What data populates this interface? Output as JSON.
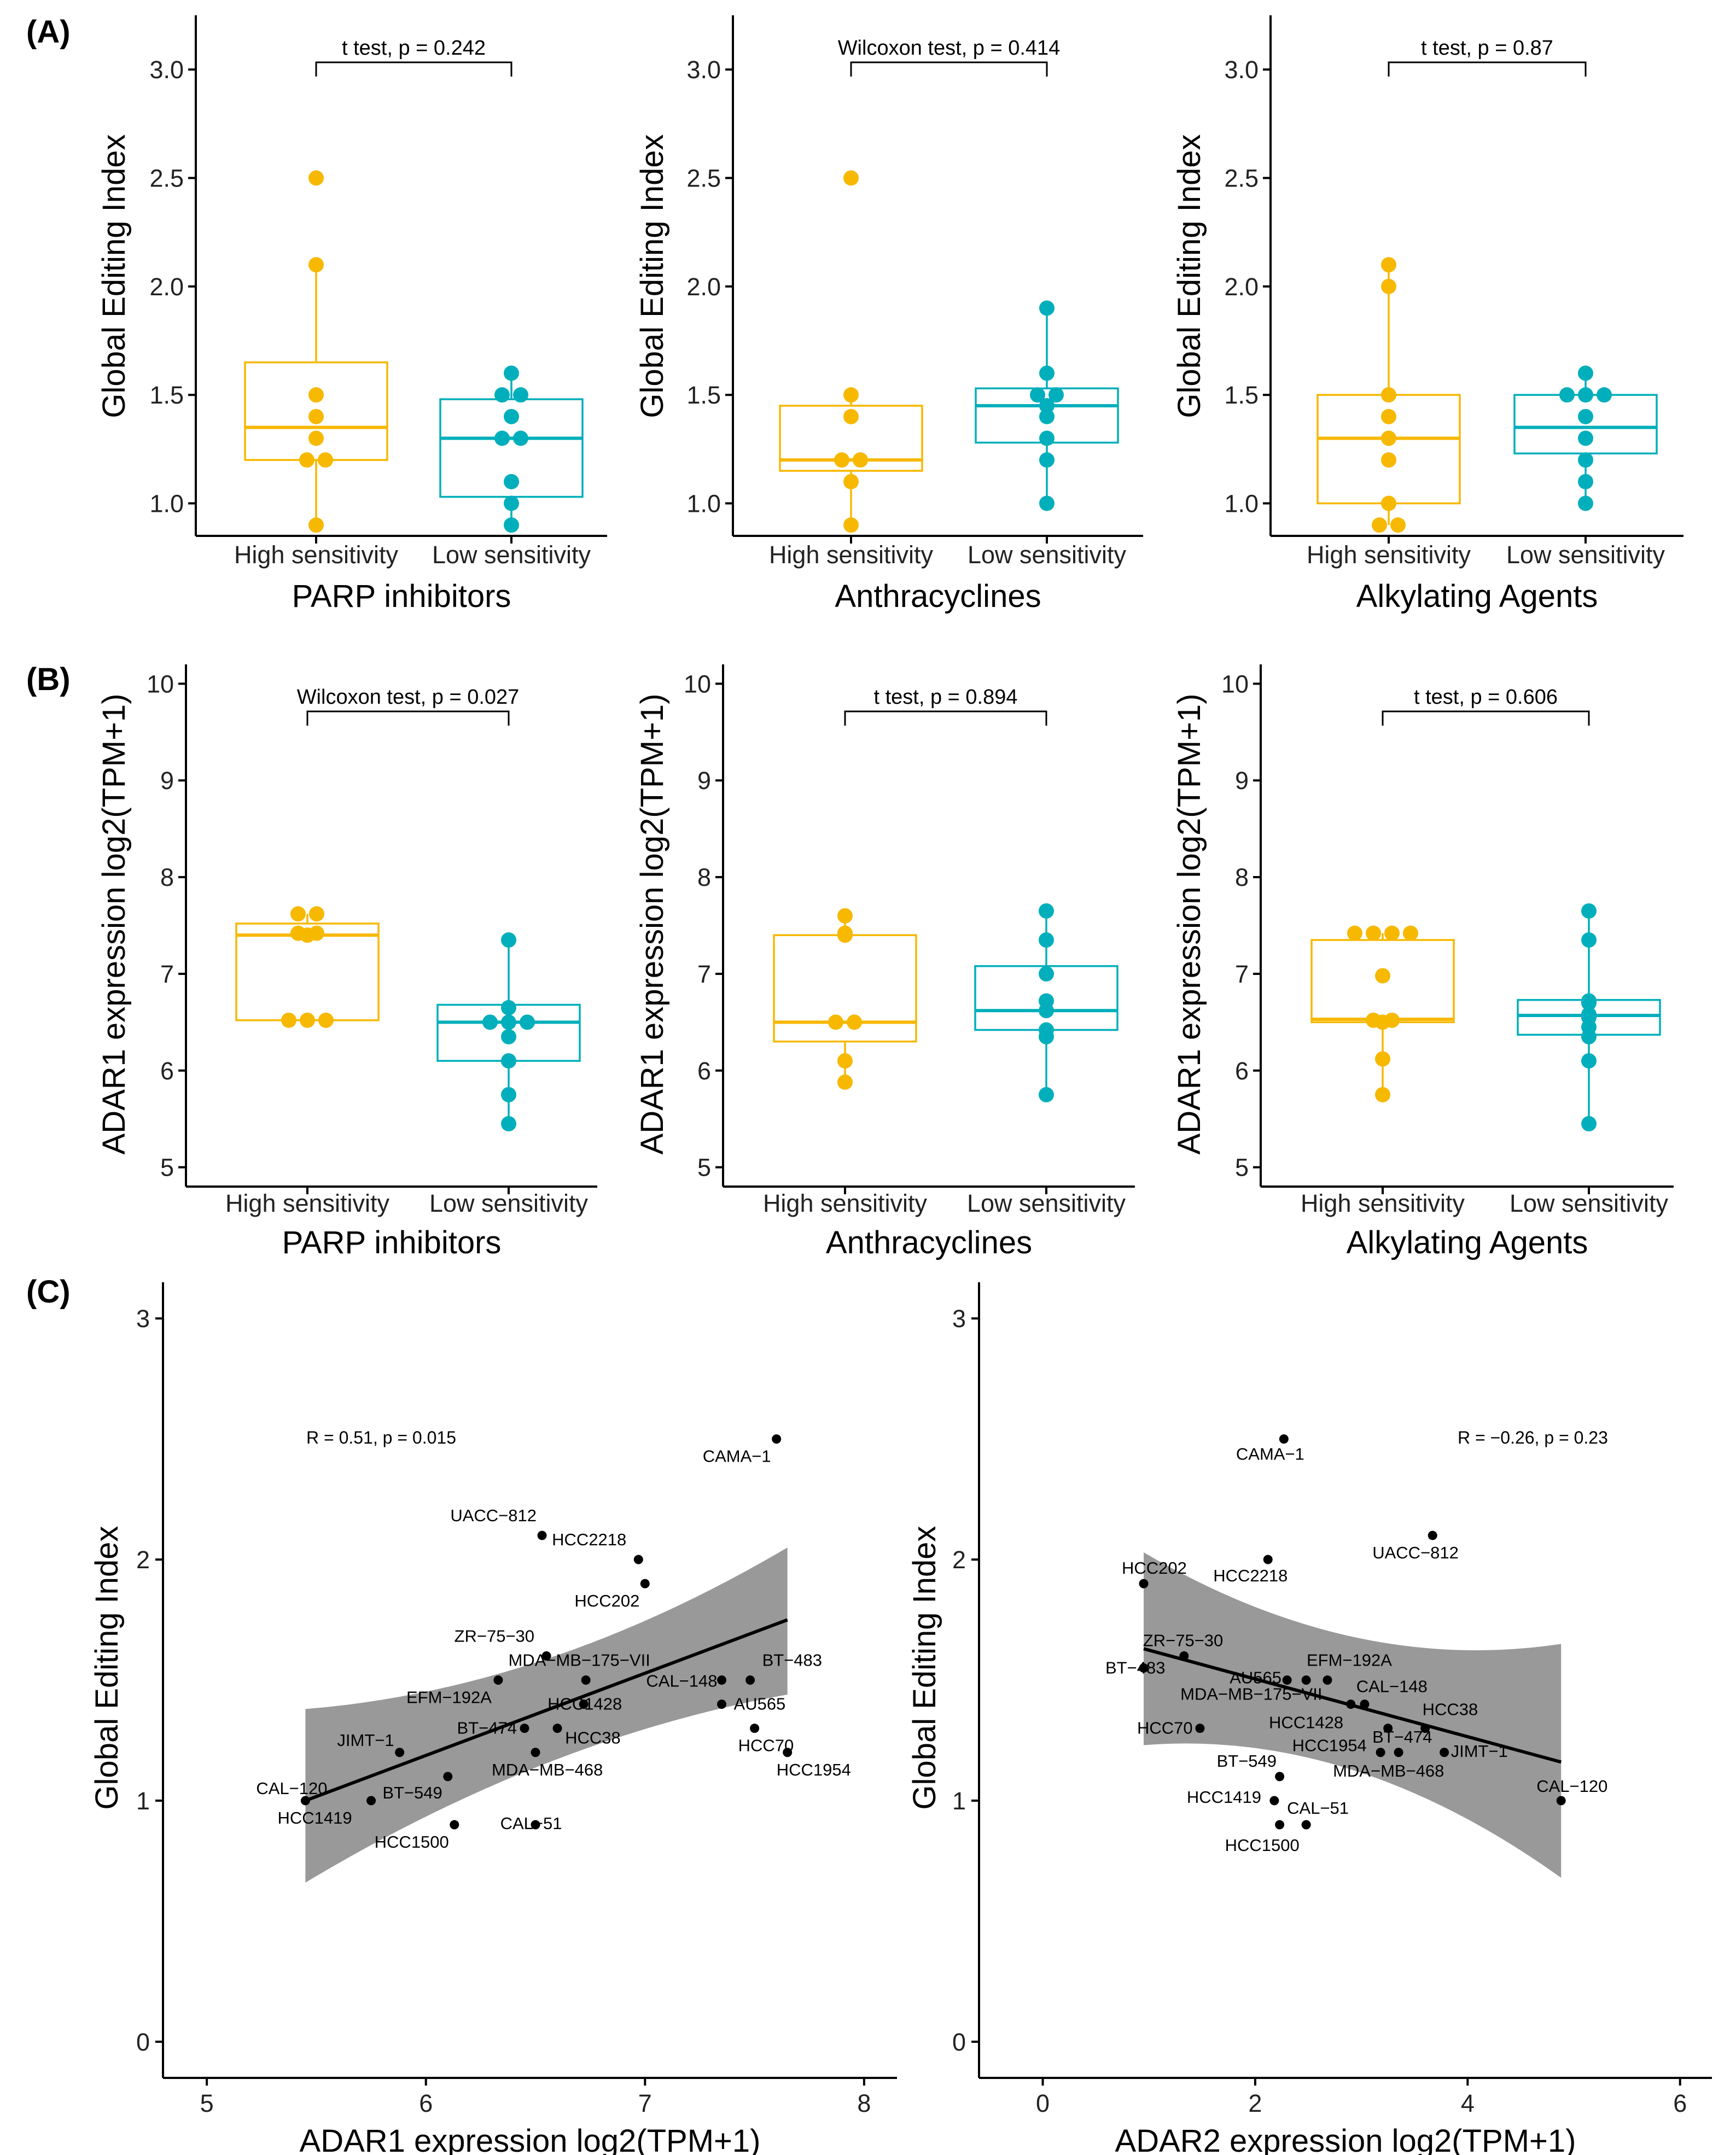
{
  "colors": {
    "high": "#F7B800",
    "low": "#00AFBB",
    "band": "#999999",
    "line": "#000000"
  },
  "panel_labels": [
    "(A)",
    "(B)",
    "(C)"
  ],
  "chart_data": [
    {
      "type": "box",
      "panel": "(A)",
      "title": "",
      "xlabel": "PARP inhibitors",
      "ylabel": "Global Editing Index",
      "ylim": [
        0.85,
        3.25
      ],
      "yticks": [
        "1.0",
        "1.5",
        "2.0",
        "2.5",
        "3.0"
      ],
      "categories": [
        "High  sensitivity",
        "Low  sensitivity"
      ],
      "annotation": "t test, p = 0.242",
      "series": [
        {
          "name": "High  sensitivity",
          "box": {
            "q1": 1.2,
            "median": 1.35,
            "q3": 1.65,
            "whisker_low": 0.9,
            "whisker_high": 2.1
          },
          "points": [
            0.9,
            1.2,
            1.2,
            1.3,
            1.4,
            1.5,
            2.1,
            2.5
          ]
        },
        {
          "name": "Low  sensitivity",
          "box": {
            "q1": 1.03,
            "median": 1.3,
            "q3": 1.48,
            "whisker_low": 0.9,
            "whisker_high": 1.6
          },
          "points": [
            0.9,
            1.0,
            1.1,
            1.3,
            1.3,
            1.4,
            1.5,
            1.5,
            1.6
          ]
        }
      ]
    },
    {
      "type": "box",
      "panel": "(A)",
      "title": "",
      "xlabel": "Anthracyclines",
      "ylabel": "Global Editing Index",
      "ylim": [
        0.85,
        3.25
      ],
      "yticks": [
        "1.0",
        "1.5",
        "2.0",
        "2.5",
        "3.0"
      ],
      "categories": [
        "High  sensitivity",
        "Low  sensitivity"
      ],
      "annotation": "Wilcoxon test, p = 0.414",
      "series": [
        {
          "name": "High  sensitivity",
          "box": {
            "q1": 1.15,
            "median": 1.2,
            "q3": 1.45,
            "whisker_low": 0.9,
            "whisker_high": 1.5
          },
          "points": [
            0.9,
            1.1,
            1.2,
            1.2,
            1.4,
            1.5,
            2.5
          ]
        },
        {
          "name": "Low  sensitivity",
          "box": {
            "q1": 1.28,
            "median": 1.45,
            "q3": 1.53,
            "whisker_low": 1.0,
            "whisker_high": 1.9
          },
          "points": [
            1.0,
            1.2,
            1.3,
            1.4,
            1.45,
            1.5,
            1.5,
            1.6,
            1.9
          ]
        }
      ]
    },
    {
      "type": "box",
      "panel": "(A)",
      "title": "",
      "xlabel": "Alkylating Agents",
      "ylabel": "Global Editing Index",
      "ylim": [
        0.85,
        3.25
      ],
      "yticks": [
        "1.0",
        "1.5",
        "2.0",
        "2.5",
        "3.0"
      ],
      "categories": [
        "High  sensitivity",
        "Low  sensitivity"
      ],
      "annotation": "t test, p = 0.87",
      "series": [
        {
          "name": "High  sensitivity",
          "box": {
            "q1": 1.0,
            "median": 1.3,
            "q3": 1.5,
            "whisker_low": 0.9,
            "whisker_high": 2.1
          },
          "points": [
            0.9,
            0.9,
            1.0,
            1.2,
            1.3,
            1.4,
            1.5,
            2.0,
            2.1
          ]
        },
        {
          "name": "Low  sensitivity",
          "box": {
            "q1": 1.23,
            "median": 1.35,
            "q3": 1.5,
            "whisker_low": 1.0,
            "whisker_high": 1.6
          },
          "points": [
            1.0,
            1.1,
            1.2,
            1.3,
            1.4,
            1.5,
            1.5,
            1.5,
            1.6
          ]
        }
      ]
    },
    {
      "type": "box",
      "panel": "(B)",
      "title": "",
      "xlabel": "PARP inhibitors",
      "ylabel": "ADAR1 expression log2(TPM+1)",
      "ylim": [
        4.8,
        10.2
      ],
      "yticks": [
        "5",
        "6",
        "7",
        "8",
        "9",
        "10"
      ],
      "categories": [
        "High  sensitivity",
        "Low  sensitivity"
      ],
      "annotation": "Wilcoxon test, p = 0.027",
      "series": [
        {
          "name": "High  sensitivity",
          "box": {
            "q1": 6.52,
            "median": 7.4,
            "q3": 7.52,
            "whisker_low": 6.52,
            "whisker_high": 7.62
          },
          "points": [
            6.52,
            6.52,
            6.52,
            7.4,
            7.42,
            7.42,
            7.62,
            7.62
          ]
        },
        {
          "name": "Low  sensitivity",
          "box": {
            "q1": 6.1,
            "median": 6.5,
            "q3": 6.68,
            "whisker_low": 5.45,
            "whisker_high": 7.35
          },
          "points": [
            5.45,
            5.75,
            6.1,
            6.35,
            6.5,
            6.5,
            6.5,
            6.65,
            7.35
          ]
        }
      ]
    },
    {
      "type": "box",
      "panel": "(B)",
      "title": "",
      "xlabel": "Anthracyclines",
      "ylabel": "ADAR1 expression log2(TPM+1)",
      "ylim": [
        4.8,
        10.2
      ],
      "yticks": [
        "5",
        "6",
        "7",
        "8",
        "9",
        "10"
      ],
      "categories": [
        "High  sensitivity",
        "Low  sensitivity"
      ],
      "annotation": "t test, p = 0.894",
      "series": [
        {
          "name": "High  sensitivity",
          "box": {
            "q1": 6.3,
            "median": 6.5,
            "q3": 7.4,
            "whisker_low": 5.88,
            "whisker_high": 7.6
          },
          "points": [
            5.88,
            6.1,
            6.5,
            6.5,
            7.4,
            7.42,
            7.6
          ]
        },
        {
          "name": "Low  sensitivity",
          "box": {
            "q1": 6.42,
            "median": 6.62,
            "q3": 7.08,
            "whisker_low": 5.75,
            "whisker_high": 7.65
          },
          "points": [
            5.75,
            6.35,
            6.42,
            6.62,
            6.72,
            7.0,
            7.35,
            7.65
          ]
        }
      ]
    },
    {
      "type": "box",
      "panel": "(B)",
      "title": "",
      "xlabel": "Alkylating Agents",
      "ylabel": "ADAR1 expression log2(TPM+1)",
      "ylim": [
        4.8,
        10.2
      ],
      "yticks": [
        "5",
        "6",
        "7",
        "8",
        "9",
        "10"
      ],
      "categories": [
        "High  sensitivity",
        "Low  sensitivity"
      ],
      "annotation": "t test, p = 0.606",
      "series": [
        {
          "name": "High  sensitivity",
          "box": {
            "q1": 6.5,
            "median": 6.53,
            "q3": 7.35,
            "whisker_low": 5.75,
            "whisker_high": 7.42
          },
          "points": [
            5.75,
            6.12,
            6.5,
            6.52,
            6.52,
            6.98,
            7.42,
            7.42,
            7.42,
            7.42
          ]
        },
        {
          "name": "Low  sensitivity",
          "box": {
            "q1": 6.37,
            "median": 6.57,
            "q3": 6.73,
            "whisker_low": 5.45,
            "whisker_high": 7.65
          },
          "points": [
            5.45,
            6.1,
            6.35,
            6.45,
            6.55,
            6.58,
            6.7,
            6.72,
            7.35,
            7.65
          ]
        }
      ]
    },
    {
      "type": "scatter",
      "panel": "(C)",
      "title": "",
      "xlabel": "ADAR1 expression log2(TPM+1)",
      "ylabel": "Global Editing Index",
      "xlim": [
        4.8,
        8.15
      ],
      "ylim": [
        -0.15,
        3.15
      ],
      "xticks": [
        "5",
        "6",
        "7",
        "8"
      ],
      "yticks": [
        "0",
        "1",
        "2",
        "3"
      ],
      "annotation": "R = 0.51, p = 0.015",
      "fit": {
        "x0": 5.45,
        "y0": 1.0,
        "x1": 7.65,
        "y1": 1.75,
        "band0": [
          0.66,
          1.38
        ],
        "bandmid": [
          1.26,
          1.46
        ],
        "band1": [
          1.44,
          2.05
        ]
      },
      "points": [
        {
          "label": "CAMA−1",
          "x": 7.6,
          "y": 2.5
        },
        {
          "label": "UACC−812",
          "x": 6.53,
          "y": 2.1
        },
        {
          "label": "HCC2218",
          "x": 6.97,
          "y": 2.0
        },
        {
          "label": "HCC202",
          "x": 7.0,
          "y": 1.9
        },
        {
          "label": "ZR−75−30",
          "x": 6.55,
          "y": 1.6
        },
        {
          "label": "MDA−MB−175−VII",
          "x": 6.73,
          "y": 1.5
        },
        {
          "label": "EFM−192A",
          "x": 6.33,
          "y": 1.5
        },
        {
          "label": "BT−483",
          "x": 7.48,
          "y": 1.5
        },
        {
          "label": "CAL−148",
          "x": 7.35,
          "y": 1.5
        },
        {
          "label": "AU565",
          "x": 7.35,
          "y": 1.4
        },
        {
          "label": "HCC1428",
          "x": 6.72,
          "y": 1.4
        },
        {
          "label": "BT−474",
          "x": 6.45,
          "y": 1.3
        },
        {
          "label": "HCC38",
          "x": 6.6,
          "y": 1.3
        },
        {
          "label": "HCC70",
          "x": 7.5,
          "y": 1.3
        },
        {
          "label": "JIMT−1",
          "x": 5.88,
          "y": 1.2
        },
        {
          "label": "MDA−MB−468",
          "x": 6.5,
          "y": 1.2
        },
        {
          "label": "HCC1954",
          "x": 7.65,
          "y": 1.2
        },
        {
          "label": "CAL−120",
          "x": 5.45,
          "y": 1.0
        },
        {
          "label": "BT−549",
          "x": 6.1,
          "y": 1.1
        },
        {
          "label": "HCC1419",
          "x": 5.75,
          "y": 1.0
        },
        {
          "label": "HCC1500",
          "x": 6.13,
          "y": 0.9
        },
        {
          "label": "CAL−51",
          "x": 6.5,
          "y": 0.9
        }
      ]
    },
    {
      "type": "scatter",
      "panel": "(C)",
      "title": "",
      "xlabel": "ADAR2 expression log2(TPM+1)",
      "ylabel": "Global Editing Index",
      "xlim": [
        -0.6,
        6.3
      ],
      "ylim": [
        -0.15,
        3.15
      ],
      "xticks": [
        "0",
        "2",
        "4",
        "6"
      ],
      "yticks": [
        "0",
        "1",
        "2",
        "3"
      ],
      "annotation": "R = −0.26, p = 0.23",
      "fit": {
        "x0": 0.95,
        "y0": 1.63,
        "x1": 4.88,
        "y1": 1.16,
        "band0": [
          1.23,
          2.03
        ],
        "bandmid": [
          1.3,
          1.52
        ],
        "band1": [
          0.68,
          1.65
        ]
      },
      "points": [
        {
          "label": "CAMA−1",
          "x": 2.27,
          "y": 2.5
        },
        {
          "label": "UACC−812",
          "x": 3.67,
          "y": 2.1
        },
        {
          "label": "HCC2218",
          "x": 2.12,
          "y": 2.0
        },
        {
          "label": "HCC202",
          "x": 0.95,
          "y": 1.9
        },
        {
          "label": "ZR−75−30",
          "x": 1.33,
          "y": 1.6
        },
        {
          "label": "BT−483",
          "x": 0.95,
          "y": 1.55
        },
        {
          "label": "AU565",
          "x": 2.3,
          "y": 1.5
        },
        {
          "label": "EFM−192A",
          "x": 2.68,
          "y": 1.5
        },
        {
          "label": "MDA−MB−175−VII",
          "x": 2.48,
          "y": 1.5
        },
        {
          "label": "CAL−148",
          "x": 2.9,
          "y": 1.4
        },
        {
          "label": "HCC1428",
          "x": 3.03,
          "y": 1.4
        },
        {
          "label": "HCC38",
          "x": 3.6,
          "y": 1.3
        },
        {
          "label": "HCC70",
          "x": 1.48,
          "y": 1.3
        },
        {
          "label": "HCC1954",
          "x": 3.25,
          "y": 1.3
        },
        {
          "label": "BT−474",
          "x": 3.18,
          "y": 1.2
        },
        {
          "label": "JIMT−1",
          "x": 3.78,
          "y": 1.2
        },
        {
          "label": "MDA−MB−468",
          "x": 3.35,
          "y": 1.2
        },
        {
          "label": "CAL−120",
          "x": 4.88,
          "y": 1.0
        },
        {
          "label": "BT−549",
          "x": 2.23,
          "y": 1.1
        },
        {
          "label": "HCC1419",
          "x": 2.18,
          "y": 1.0
        },
        {
          "label": "HCC1500",
          "x": 2.23,
          "y": 0.9
        },
        {
          "label": "CAL−51",
          "x": 2.48,
          "y": 0.9
        }
      ]
    }
  ]
}
